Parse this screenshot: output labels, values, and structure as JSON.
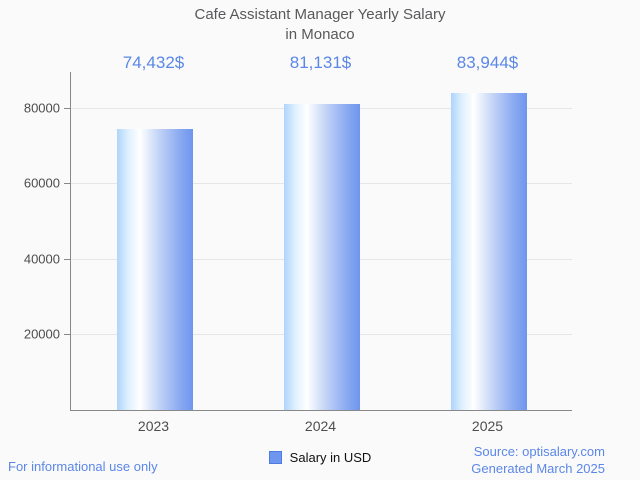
{
  "title": {
    "line1": "Cafe Assistant Manager Yearly Salary",
    "line2": "in Monaco"
  },
  "chart_data": {
    "type": "bar",
    "title": "Cafe Assistant Manager Yearly Salary in Monaco",
    "categories": [
      "2023",
      "2024",
      "2025"
    ],
    "values": [
      74432,
      81131,
      83944
    ],
    "value_labels": [
      "74,432$",
      "81,131$",
      "83,944$"
    ],
    "series_name": "Salary in USD",
    "xlabel": "",
    "ylabel": "",
    "ylim": [
      0,
      89500
    ],
    "yticks": [
      20000,
      40000,
      60000,
      80000
    ],
    "grid": true,
    "legend_position": "bottom-center"
  },
  "legend": {
    "label": "Salary in USD"
  },
  "footer": {
    "left": "For informational use only",
    "source": "Source: optisalary.com",
    "generated": "Generated March 2025"
  },
  "colors": {
    "background": "#fafafa",
    "title_text": "#58595b",
    "value_label": "#5b87e8",
    "bar_gradient": [
      "#aed4fb",
      "#ffffff",
      "#6e96ee"
    ],
    "axis": "#888888",
    "gridline": "#e6e6e6",
    "tick_label": "#4d4d4d",
    "legend_swatch_fill": "#6e96ee",
    "legend_swatch_border": "#4c7ce0",
    "footer_text": "#5b87e8"
  }
}
